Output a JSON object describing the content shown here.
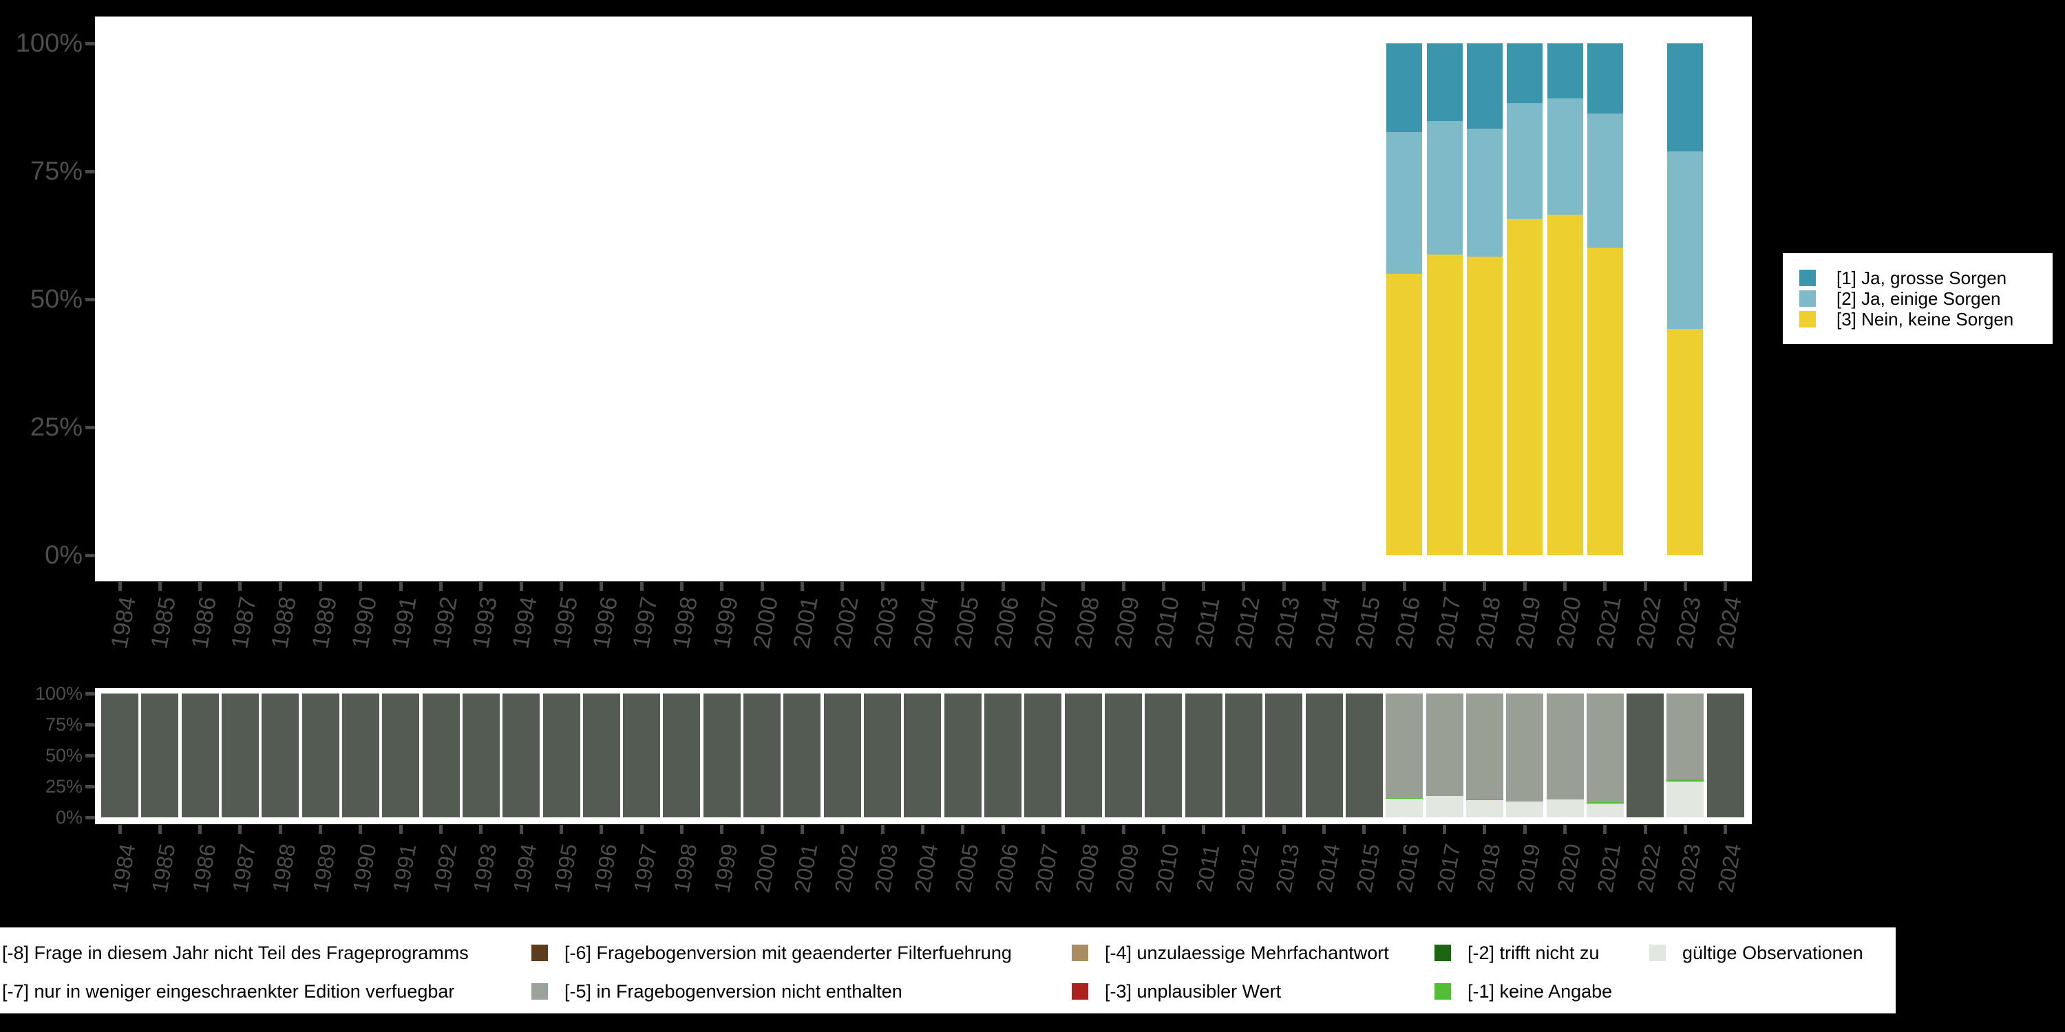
{
  "figure": {
    "background_color": "#000000",
    "axis_text_color": "#4d4d4d"
  },
  "years": [
    "1984",
    "1985",
    "1986",
    "1987",
    "1988",
    "1989",
    "1990",
    "1991",
    "1992",
    "1993",
    "1994",
    "1995",
    "1996",
    "1997",
    "1998",
    "1999",
    "2000",
    "2001",
    "2002",
    "2003",
    "2004",
    "2005",
    "2006",
    "2007",
    "2008",
    "2009",
    "2010",
    "2011",
    "2012",
    "2013",
    "2014",
    "2015",
    "2016",
    "2017",
    "2018",
    "2019",
    "2020",
    "2021",
    "2022",
    "2023",
    "2024"
  ],
  "legend_main": {
    "items": [
      {
        "label": "[1] Ja, grosse Sorgen",
        "color": "#3B96AD"
      },
      {
        "label": "[2] Ja, einige Sorgen",
        "color": "#7FBAC9"
      },
      {
        "label": "[3] Nein, keine Sorgen",
        "color": "#EDD02F"
      }
    ]
  },
  "legend_missing": {
    "rows": [
      [
        {
          "label": "[-8] Frage in diesem Jahr nicht Teil des Frageprogramms",
          "color": null
        },
        {
          "label": "[-6] Fragebogenversion mit geaenderter Filterfuehrung",
          "color": "#5E3B1D"
        },
        {
          "label": "[-4] unzulaessige Mehrfachantwort",
          "color": "#A98C60"
        },
        {
          "label": "[-2] trifft nicht zu",
          "color": "#1A670E"
        },
        {
          "label": "gültige Observationen",
          "color": "#E2E7DF"
        }
      ],
      [
        {
          "label": "[-7] nur in weniger eingeschraenkter Edition verfuegbar",
          "color": null
        },
        {
          "label": "[-5] in Fragebogenversion nicht enthalten",
          "color": "#9BA19B"
        },
        {
          "label": "[-3] unplausibler Wert",
          "color": "#AD201D"
        },
        {
          "label": "[-1] keine Angabe",
          "color": "#53BD34"
        }
      ]
    ]
  },
  "chart_data": [
    {
      "type": "bar",
      "stacked": true,
      "title": "",
      "xlabel": "",
      "ylabel": "",
      "ylim": [
        0,
        100
      ],
      "grid": false,
      "legend_position": "right",
      "y_tick_labels": [
        "0%",
        "25%",
        "50%",
        "75%",
        "100%"
      ],
      "y_tick_values": [
        0,
        25,
        50,
        75,
        100
      ],
      "categories": [
        "1984",
        "1985",
        "1986",
        "1987",
        "1988",
        "1989",
        "1990",
        "1991",
        "1992",
        "1993",
        "1994",
        "1995",
        "1996",
        "1997",
        "1998",
        "1999",
        "2000",
        "2001",
        "2002",
        "2003",
        "2004",
        "2005",
        "2006",
        "2007",
        "2008",
        "2009",
        "2010",
        "2011",
        "2012",
        "2013",
        "2014",
        "2015",
        "2016",
        "2017",
        "2018",
        "2019",
        "2020",
        "2021",
        "2022",
        "2023",
        "2024"
      ],
      "series": [
        {
          "name": "[3] Nein, keine Sorgen",
          "color": "#EDD02F",
          "values": {
            "2016": 55.0,
            "2017": 58.7,
            "2018": 58.3,
            "2019": 65.7,
            "2020": 66.5,
            "2021": 60.1,
            "2023": 44.2
          }
        },
        {
          "name": "[2] Ja, einige Sorgen",
          "color": "#7FBAC9",
          "values": {
            "2016": 27.7,
            "2017": 26.1,
            "2018": 25.0,
            "2019": 22.6,
            "2020": 22.7,
            "2021": 26.2,
            "2023": 34.7
          }
        },
        {
          "name": "[1] Ja, grosse Sorgen",
          "color": "#3B96AD",
          "values": {
            "2016": 17.3,
            "2017": 15.2,
            "2018": 16.7,
            "2019": 11.7,
            "2020": 10.8,
            "2021": 13.7,
            "2023": 21.1
          }
        }
      ]
    },
    {
      "type": "bar",
      "stacked": true,
      "title": "",
      "xlabel": "",
      "ylabel": "",
      "ylim": [
        0,
        100
      ],
      "grid": false,
      "legend_position": "bottom",
      "y_tick_labels": [
        "0%",
        "25%",
        "50%",
        "75%",
        "100%"
      ],
      "y_tick_values": [
        0,
        25,
        50,
        75,
        100
      ],
      "categories": [
        "1984",
        "1985",
        "1986",
        "1987",
        "1988",
        "1989",
        "1990",
        "1991",
        "1992",
        "1993",
        "1994",
        "1995",
        "1996",
        "1997",
        "1998",
        "1999",
        "2000",
        "2001",
        "2002",
        "2003",
        "2004",
        "2005",
        "2006",
        "2007",
        "2008",
        "2009",
        "2010",
        "2011",
        "2012",
        "2013",
        "2014",
        "2015",
        "2016",
        "2017",
        "2018",
        "2019",
        "2020",
        "2021",
        "2022",
        "2023",
        "2024"
      ],
      "series": [
        {
          "name": "gültige Observationen",
          "color": "#E2E7DF",
          "values": {
            "2016": 14.8,
            "2017": 17.4,
            "2018": 13.8,
            "2019": 13.0,
            "2020": 14.6,
            "2021": 11.0,
            "2023": 29.0
          }
        },
        {
          "name": "[-1] keine Angabe",
          "color": "#53BD34",
          "values": {
            "2016": 1.0,
            "2018": 0.8,
            "2021": 1.2,
            "2023": 1.4
          }
        },
        {
          "name": "[-5] in Fragebogenversion nicht enthalten",
          "color": "#999F94",
          "values": {
            "2016": 84.2,
            "2017": 82.6,
            "2018": 85.4,
            "2019": 87.0,
            "2020": 85.4,
            "2021": 87.8,
            "2023": 69.6
          }
        },
        {
          "name": "[-8] Frage in diesem Jahr nicht Teil des Frageprogramms",
          "color": "#545B53",
          "values": {
            "1984": 100,
            "1985": 100,
            "1986": 100,
            "1987": 100,
            "1988": 100,
            "1989": 100,
            "1990": 100,
            "1991": 100,
            "1992": 100,
            "1993": 100,
            "1994": 100,
            "1995": 100,
            "1996": 100,
            "1997": 100,
            "1998": 100,
            "1999": 100,
            "2000": 100,
            "2001": 100,
            "2002": 100,
            "2003": 100,
            "2004": 100,
            "2005": 100,
            "2006": 100,
            "2007": 100,
            "2008": 100,
            "2009": 100,
            "2010": 100,
            "2011": 100,
            "2012": 100,
            "2013": 100,
            "2014": 100,
            "2015": 100,
            "2022": 100,
            "2024": 100
          }
        }
      ]
    }
  ]
}
